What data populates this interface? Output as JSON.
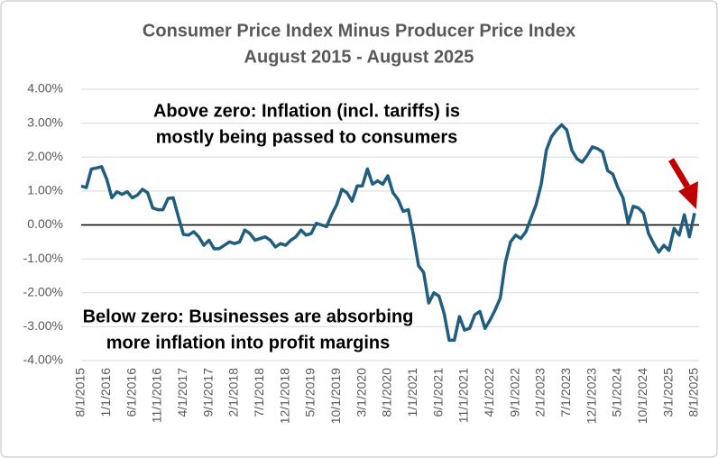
{
  "chart_data": {
    "type": "line",
    "title": "Consumer Price Index Minus Producer Price Index",
    "subtitle": "August 2015 - August 2025",
    "annotations": [
      [
        "Above zero: Inflation (incl. tariffs) is",
        "mostly being passed to consumers"
      ],
      [
        "Below zero: Businesses are absorbing",
        "more inflation into profit margins"
      ]
    ],
    "categories": [
      "8/1/2015",
      null,
      null,
      null,
      null,
      "1/1/2016",
      null,
      null,
      null,
      null,
      "6/1/2016",
      null,
      null,
      null,
      null,
      "11/1/2016",
      null,
      null,
      null,
      null,
      "4/1/2017",
      null,
      null,
      null,
      null,
      "9/1/2017",
      null,
      null,
      null,
      null,
      "2/1/2018",
      null,
      null,
      null,
      null,
      "7/1/2018",
      null,
      null,
      null,
      null,
      "12/1/2018",
      null,
      null,
      null,
      null,
      "5/1/2019",
      null,
      null,
      null,
      null,
      "10/1/2019",
      null,
      null,
      null,
      null,
      "3/1/2020",
      null,
      null,
      null,
      null,
      "8/1/2020",
      null,
      null,
      null,
      null,
      "1/1/2021",
      null,
      null,
      null,
      null,
      "6/1/2021",
      null,
      null,
      null,
      null,
      "11/1/2021",
      null,
      null,
      null,
      null,
      "4/1/2022",
      null,
      null,
      null,
      null,
      "9/1/2022",
      null,
      null,
      null,
      null,
      "2/1/2023",
      null,
      null,
      null,
      null,
      "7/1/2023",
      null,
      null,
      null,
      null,
      "12/1/2023",
      null,
      null,
      null,
      null,
      "5/1/2024",
      null,
      null,
      null,
      null,
      "10/1/2024",
      null,
      null,
      null,
      null,
      "3/1/2025",
      null,
      null,
      null,
      null,
      "8/1/2025"
    ],
    "series": [
      {
        "color": "#215d7e",
        "values": [
          1.15,
          1.1,
          1.65,
          1.68,
          1.72,
          1.35,
          0.8,
          0.98,
          0.9,
          0.98,
          0.8,
          0.88,
          1.05,
          0.95,
          0.5,
          0.45,
          0.45,
          0.78,
          0.8,
          0.25,
          -0.28,
          -0.3,
          -0.2,
          -0.35,
          -0.6,
          -0.45,
          -0.7,
          -0.7,
          -0.6,
          -0.5,
          -0.55,
          -0.5,
          -0.15,
          -0.25,
          -0.45,
          -0.4,
          -0.35,
          -0.45,
          -0.65,
          -0.55,
          -0.6,
          -0.45,
          -0.35,
          -0.15,
          -0.3,
          -0.25,
          0.05,
          0.0,
          -0.05,
          0.3,
          0.6,
          1.05,
          0.95,
          0.7,
          1.15,
          1.15,
          1.65,
          1.2,
          1.3,
          1.2,
          1.45,
          0.95,
          0.75,
          0.4,
          0.45,
          -0.3,
          -1.2,
          -1.4,
          -2.3,
          -2.0,
          -2.1,
          -2.6,
          -3.4,
          -3.4,
          -2.7,
          -3.1,
          -3.05,
          -2.65,
          -2.55,
          -3.05,
          -2.8,
          -2.5,
          -2.15,
          -1.1,
          -0.5,
          -0.3,
          -0.4,
          -0.2,
          0.2,
          0.6,
          1.2,
          2.2,
          2.6,
          2.8,
          2.95,
          2.8,
          2.2,
          1.95,
          1.85,
          2.05,
          2.3,
          2.25,
          2.15,
          1.6,
          1.5,
          1.1,
          0.8,
          0.05,
          0.55,
          0.5,
          0.35,
          -0.25,
          -0.55,
          -0.8,
          -0.6,
          -0.75,
          -0.1,
          -0.3,
          0.3,
          -0.35,
          0.35
        ]
      }
    ],
    "ylim": [
      -4,
      4
    ],
    "yticks": [
      {
        "value": -4,
        "label": "-4.00%"
      },
      {
        "value": -3,
        "label": "-3.00%"
      },
      {
        "value": -2,
        "label": "-2.00%"
      },
      {
        "value": -1,
        "label": "-1.00%"
      },
      {
        "value": 0,
        "label": "0.00%"
      },
      {
        "value": 1,
        "label": "1.00%"
      },
      {
        "value": 2,
        "label": "2.00%"
      },
      {
        "value": 3,
        "label": "3.00%"
      },
      {
        "value": 4,
        "label": "4.00%"
      }
    ],
    "grid": true
  }
}
